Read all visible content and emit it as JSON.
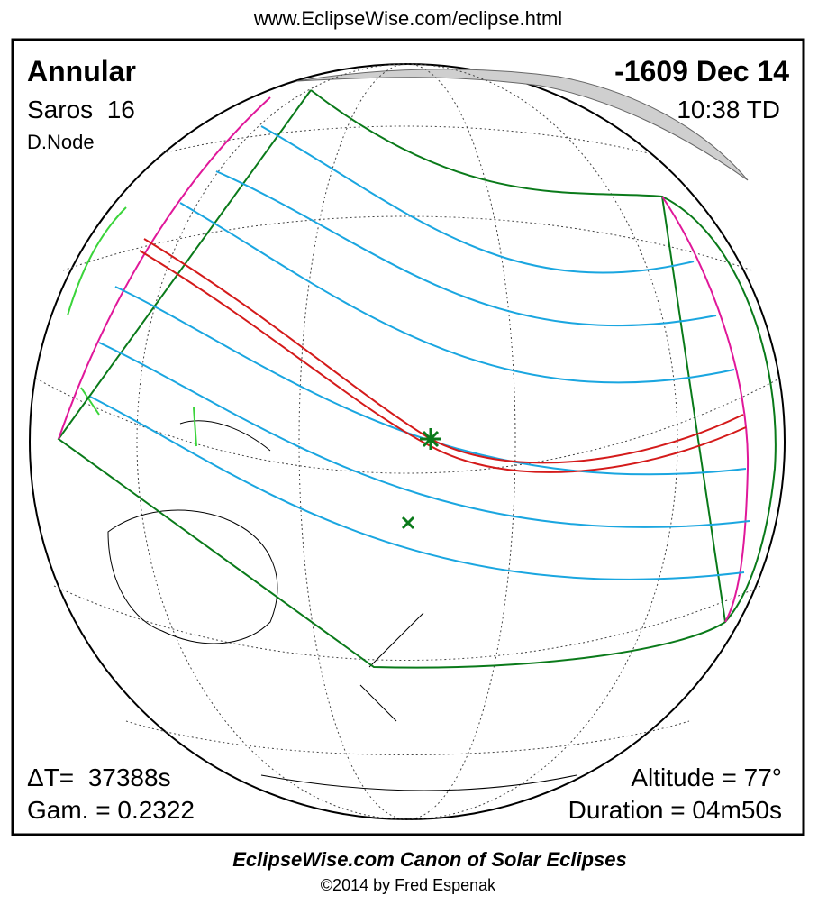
{
  "header": {
    "url": "www.EclipseWise.com/eclipse.html",
    "eclipse_type": "Annular",
    "date": "-1609 Dec 14",
    "saros": "Saros  16",
    "time": "10:38 TD",
    "node": "D.Node"
  },
  "stats": {
    "delta_t": "ΔT=  37388s",
    "gamma": "Gam. = 0.2322",
    "altitude": "Altitude = 77°",
    "duration": "Duration = 04m50s"
  },
  "footer": {
    "title": "EclipseWise.com Canon of Solar Eclipses",
    "credit": "©2014 by Fred Espenak"
  }
}
